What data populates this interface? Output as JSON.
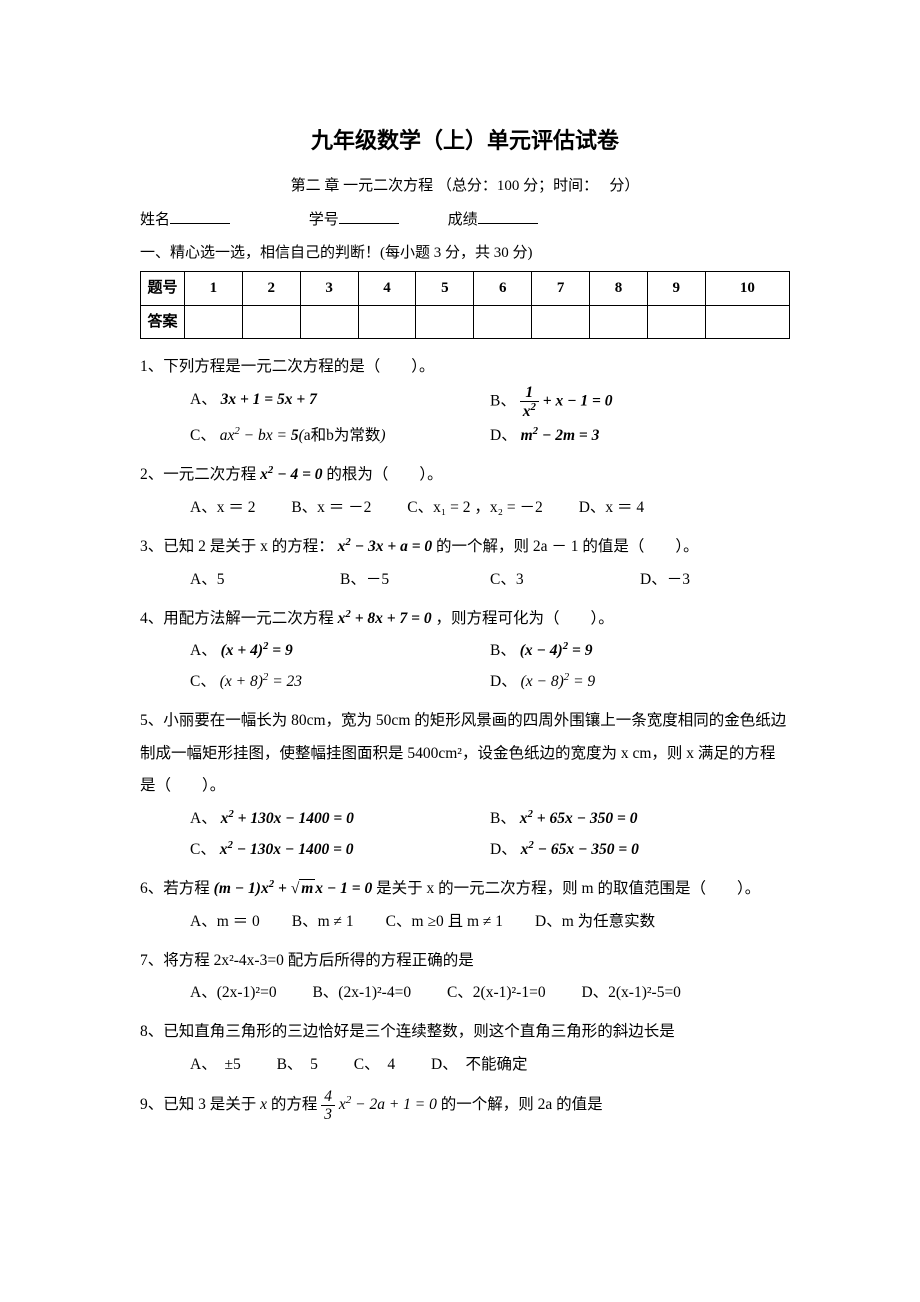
{
  "title": "九年级数学（上）单元评估试卷",
  "subtitle_prefix": "第二 章 一元二次方程 （总分：",
  "total_score": "100",
  "subtitle_mid": " 分；时间：",
  "subtitle_suffix": " 分）",
  "info": {
    "name_label": "姓名",
    "number_label": "学号",
    "score_label": "成绩"
  },
  "section1_header": "一、精心选一选，相信自己的判断！(每小题 3 分，共 30 分)",
  "table": {
    "row1_label": "题号",
    "row2_label": "答案",
    "numbers": [
      "1",
      "2",
      "3",
      "4",
      "5",
      "6",
      "7",
      "8",
      "9",
      "10"
    ]
  },
  "q1": {
    "stem": "1、下列方程是一元二次方程的是（　　）。",
    "A_label": "A、",
    "A_math": "3x + 1 = 5x + 7",
    "B_label": "B、",
    "B_math_a": "1",
    "B_math_b": "x²",
    "B_math_c": "+ x − 1 = 0",
    "C_label": "C、",
    "C_math": "ax² − bx = 5(a和b为常数)",
    "D_label": "D、",
    "D_math": "m² − 2m = 3"
  },
  "q2": {
    "stem_a": "2、一元二次方程",
    "stem_math": "x² − 4 = 0",
    "stem_b": "的根为（　　）。",
    "A": "A、x ＝ 2",
    "B": "B、x ＝ －2",
    "C": "C、x₁ = 2 ，x₂ = －2",
    "D": "D、x ＝ 4"
  },
  "q3": {
    "stem_a": "3、已知 2 是关于 x 的方程：",
    "stem_math": "x² − 3x + a = 0",
    "stem_b": "的一个解，则 2a  －  1 的值是（　　）。",
    "A": "A、5",
    "B": "B、－5",
    "C": "C、3",
    "D": "D、－3"
  },
  "q4": {
    "stem_a": "4、用配方法解一元二次方程",
    "stem_math": "x² + 8x + 7 = 0",
    "stem_b": "，则方程可化为（　　）。",
    "A_label": "A、",
    "A_math": "(x + 4)² = 9",
    "B_label": "B、",
    "B_math": "(x − 4)² = 9",
    "C_label": "C、",
    "C_math": "(x + 8)² = 23",
    "D_label": "D、",
    "D_math": "(x − 8)² = 9"
  },
  "q5": {
    "stem": "5、小丽要在一幅长为 80cm，宽为 50cm 的矩形风景画的四周外围镶上一条宽度相同的金色纸边制成一幅矩形挂图，使整幅挂图面积是 5400cm²，设金色纸边的宽度为 x cm，则 x 满足的方程是（　　）。",
    "A_label": "A、",
    "A_math": "x² + 130x − 1400 = 0",
    "B_label": "B、",
    "B_math": "x² + 65x − 350 = 0",
    "C_label": "C、",
    "C_math": "x² − 130x − 1400 = 0",
    "D_label": "D、",
    "D_math": "x² − 65x − 350 = 0"
  },
  "q6": {
    "stem_a": "6、若方程",
    "stem_math_a": "(m − 1)x² + ",
    "stem_math_rad": "m",
    "stem_math_b": "x − 1 = 0",
    "stem_b": "是关于 x 的一元二次方程，则 m 的取值范围是（　　）。",
    "A": "A、m ＝ 0",
    "B": "B、m ≠ 1",
    "C": "C、m ≥0 且 m ≠ 1",
    "D": "D、m 为任意实数"
  },
  "q7": {
    "stem": "7、将方程 2x²-4x-3=0 配方后所得的方程正确的是",
    "A": "A、(2x-1)²=0",
    "B": "B、(2x-1)²-4=0",
    "C": "C、2(x-1)²-1=0",
    "D": "D、2(x-1)²-5=0"
  },
  "q8": {
    "stem": "8、已知直角三角形的三边恰好是三个连续整数，则这个直角三角形的斜边长是",
    "A": "A、　±5",
    "B": "B、　5",
    "C": "C、　4",
    "D": "D、　不能确定"
  },
  "q9": {
    "stem_a": "9、已知 3 是关于 ",
    "stem_x": "x",
    "stem_b": " 的方程",
    "frac_num": "4",
    "frac_den": "3",
    "stem_math": "x² − 2a + 1 = 0",
    "stem_c": "的一个解，则 2a 的值是"
  },
  "colors": {
    "text": "#000000",
    "background": "#ffffff",
    "border": "#000000"
  }
}
